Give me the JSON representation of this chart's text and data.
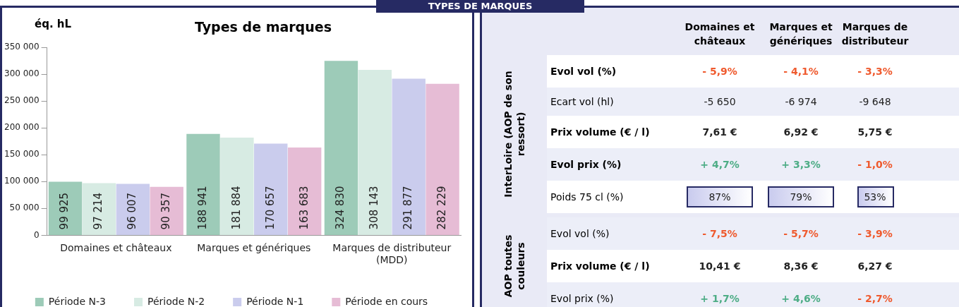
{
  "chart_data": [
    {
      "type": "bar",
      "title": "Types de marques",
      "ylabel": "éq. hL",
      "categories": [
        "Domaines et châteaux",
        "Marques et génériques",
        "Marques de distributeur (MDD)"
      ],
      "series": [
        {
          "name": "Période N-3",
          "color": "#9dcbb8",
          "values": [
            99925,
            188941,
            324830
          ],
          "value_labels": [
            "99 925",
            "188 941",
            "324 830"
          ]
        },
        {
          "name": "Période N-2",
          "color": "#d7ebe3",
          "values": [
            97214,
            181884,
            308143
          ],
          "value_labels": [
            "97 214",
            "181 884",
            "308 143"
          ]
        },
        {
          "name": "Période N-1",
          "color": "#cacced",
          "values": [
            96007,
            170657,
            291877
          ],
          "value_labels": [
            "96 007",
            "170 657",
            "291 877"
          ]
        },
        {
          "name": "Période en cours",
          "color": "#e6bcd5",
          "values": [
            90357,
            163683,
            282229
          ],
          "value_labels": [
            "90 357",
            "163 683",
            "282 229"
          ]
        }
      ],
      "ylim": [
        0,
        350000
      ],
      "yticks": [
        {
          "value": 0,
          "label": "0"
        },
        {
          "value": 50000,
          "label": "50 000"
        },
        {
          "value": 100000,
          "label": "100 000"
        },
        {
          "value": 150000,
          "label": "150 000"
        },
        {
          "value": 200000,
          "label": "200 000"
        },
        {
          "value": 250000,
          "label": "250 000"
        },
        {
          "value": 300000,
          "label": "300 000"
        },
        {
          "value": 350000,
          "label": "350 000"
        }
      ],
      "grid": false,
      "legend": "bottom"
    },
    {
      "type": "other",
      "title": "TYPES DE MARQUES",
      "categories": [
        "Domaines et châteaux",
        "Marques et génériques",
        "Marques de distributeur"
      ],
      "y_categories": [
        "Evol vol (%)",
        "Ecart vol (hl)",
        "Prix volume (€ / l)",
        "Evol prix (%)",
        "Poids 75 cl (%)",
        "Evol vol (%)",
        "Prix volume (€ / l)",
        "Evol prix (%)"
      ],
      "cell_labels": [
        [
          "- 5,9%",
          "- 4,1%",
          "- 3,3%"
        ],
        [
          "-5 650",
          "-6 974",
          "-9 648"
        ],
        [
          "7,61 €",
          "6,92 €",
          "5,75 €"
        ],
        [
          "+ 4,7%",
          "+ 3,3%",
          "- 1,0%"
        ],
        [
          "87%",
          "79%",
          "53%"
        ],
        [
          "- 7,5%",
          "- 5,7%",
          "- 3,9%"
        ],
        [
          "10,41 €",
          "8,36 €",
          "6,27 €"
        ],
        [
          "+ 1,7%",
          "+ 4,6%",
          "- 2,7%"
        ]
      ],
      "annotations": [
        "InterLoire (AOP de son ressort)",
        "AOP toutes couleurs"
      ]
    }
  ]
}
